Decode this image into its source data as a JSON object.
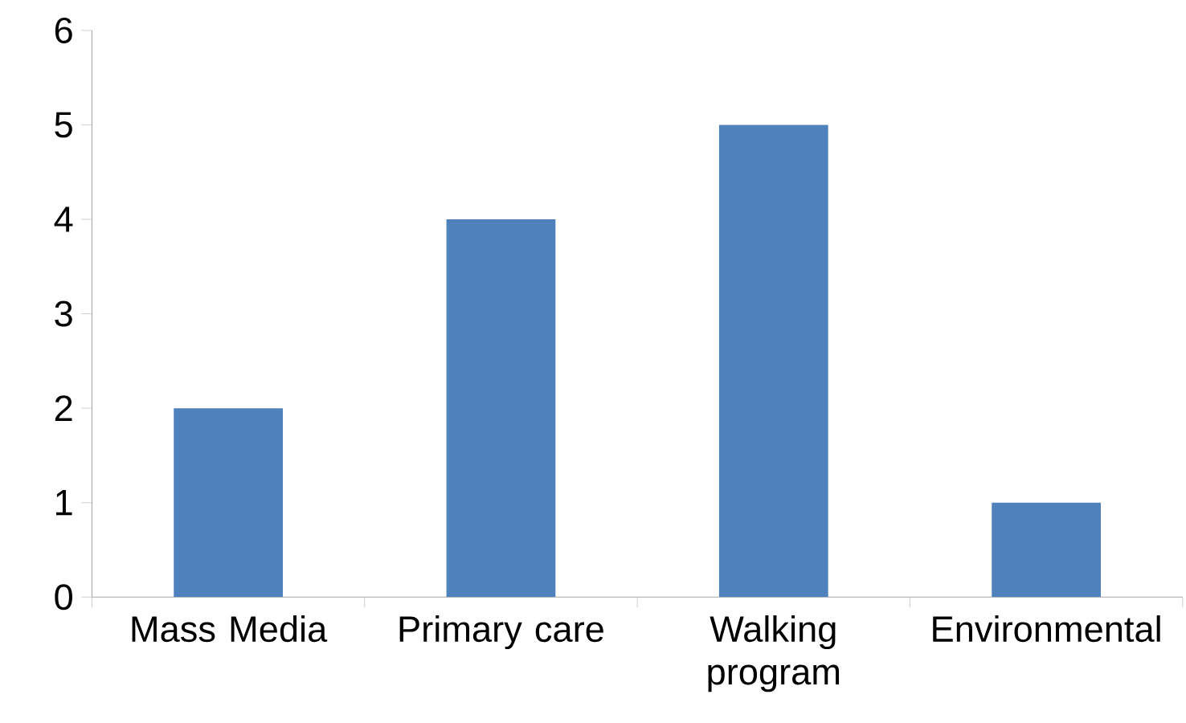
{
  "chart_data": {
    "type": "bar",
    "categories": [
      "Mass Media",
      "Primary care",
      "Walking program",
      "Environmental"
    ],
    "values": [
      2,
      4,
      5,
      1
    ],
    "color": "#4f81bd",
    "ylim": [
      0,
      6
    ],
    "yticks": [
      0,
      1,
      2,
      3,
      4,
      5,
      6
    ],
    "grid": false
  }
}
